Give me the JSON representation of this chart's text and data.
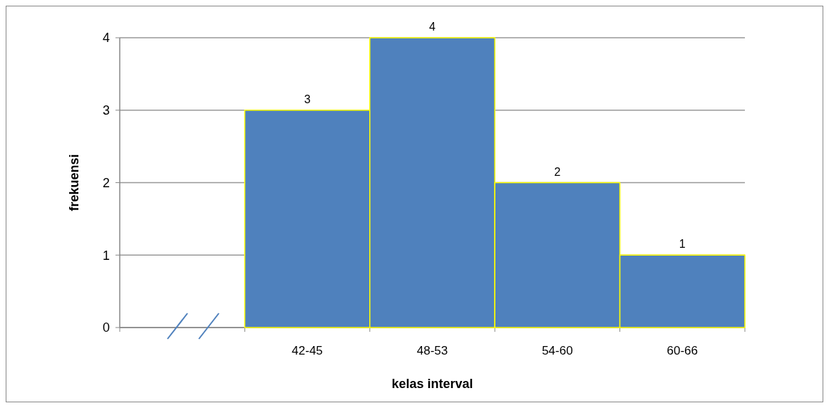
{
  "chart_data": {
    "type": "bar",
    "xlabel": "kelas interval",
    "ylabel": "frekuensi",
    "categories": [
      null,
      "42-45",
      "48-53",
      "54-60",
      "60-66"
    ],
    "values": [
      null,
      3,
      4,
      2,
      1
    ],
    "color": "#4f81bd",
    "ylim": [
      0,
      4
    ],
    "yticks": [
      0,
      1,
      2,
      3,
      4
    ],
    "grid": "y",
    "data_labels": true
  }
}
